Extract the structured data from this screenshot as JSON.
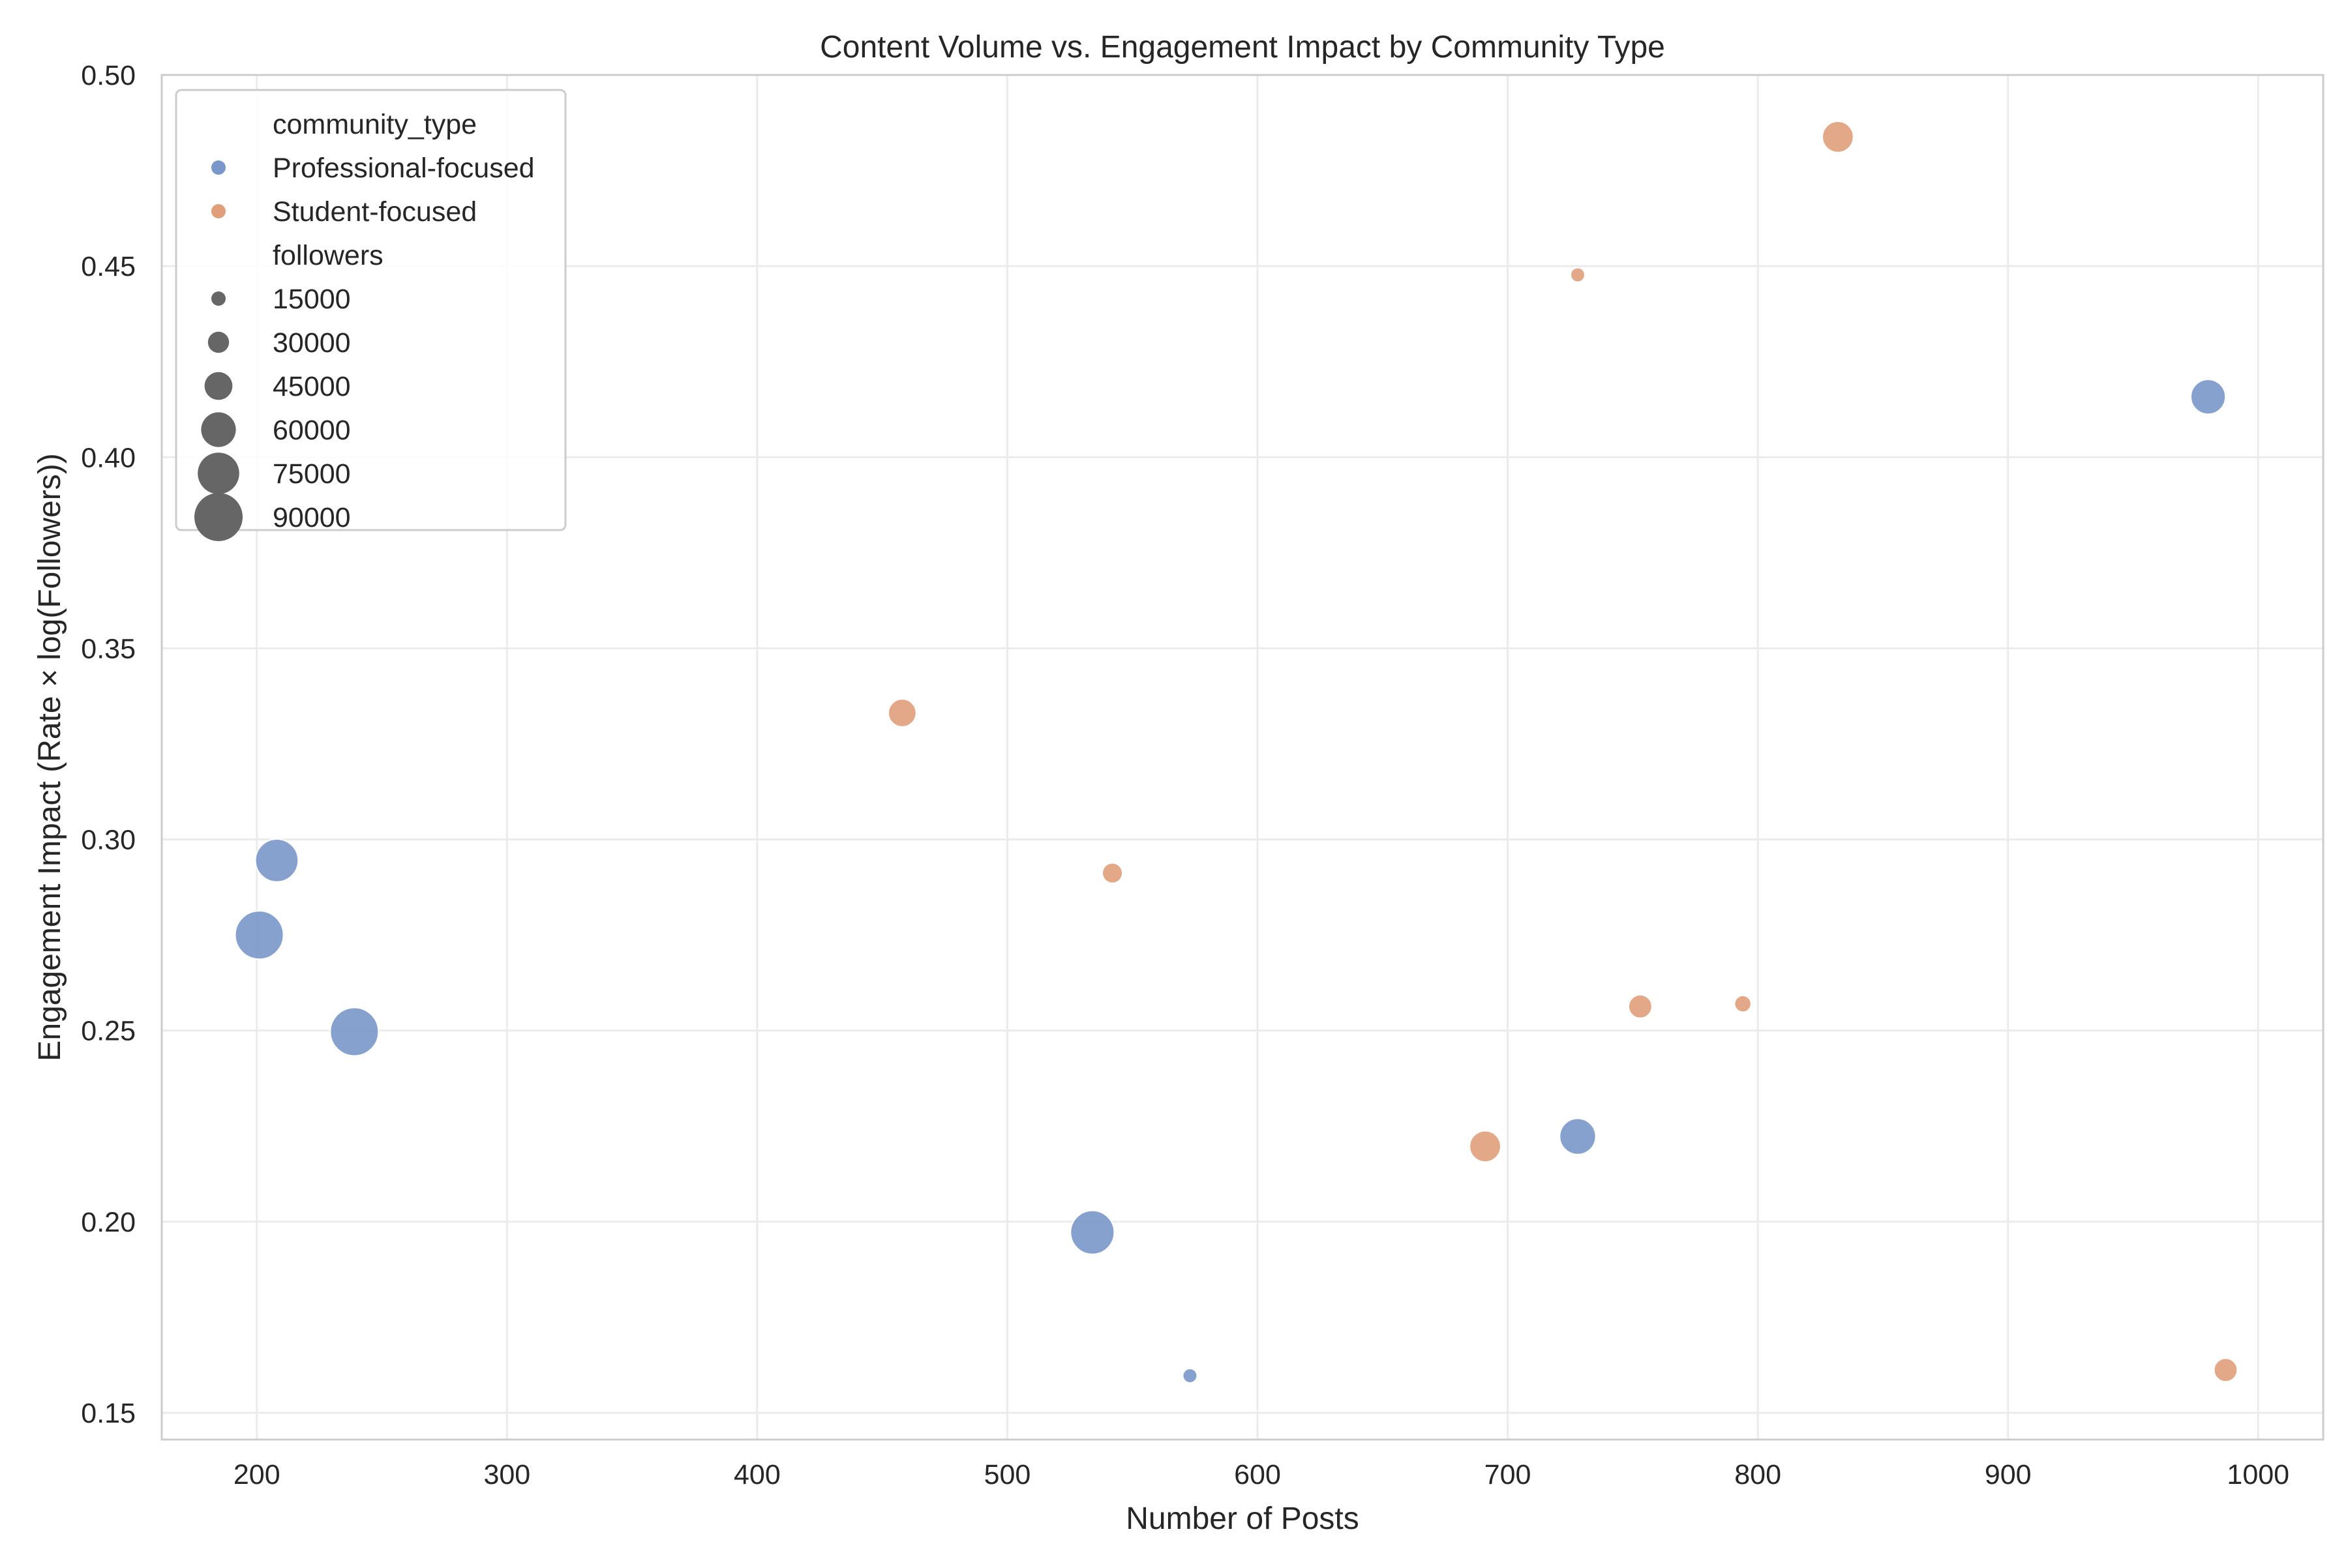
{
  "chart_data": {
    "type": "scatter",
    "title": "Content Volume vs. Engagement Impact by Community Type",
    "xlabel": "Number of Posts",
    "ylabel": "Engagement Impact (Rate × log(Followers))",
    "xlim": [
      162,
      1026
    ],
    "ylim": [
      0.143,
      0.5
    ],
    "xticks": [
      200,
      300,
      400,
      500,
      600,
      700,
      800,
      900,
      1000
    ],
    "yticks": [
      0.15,
      0.2,
      0.25,
      0.3,
      0.35,
      0.4,
      0.45,
      0.5
    ],
    "grid": true,
    "legend_position": "top-left",
    "legend": {
      "hue_title": "community_type",
      "size_title": "followers",
      "sizes": [
        15000,
        30000,
        45000,
        60000,
        75000,
        90000
      ]
    },
    "series": [
      {
        "name": "Professional-focused",
        "color": "#7a97c9",
        "points": [
          {
            "x": 201,
            "y": 0.275,
            "followers": 90000
          },
          {
            "x": 208,
            "y": 0.2945,
            "followers": 78000
          },
          {
            "x": 239,
            "y": 0.2497,
            "followers": 90000
          },
          {
            "x": 534,
            "y": 0.1972,
            "followers": 80000
          },
          {
            "x": 573,
            "y": 0.1597,
            "followers": 15000
          },
          {
            "x": 728,
            "y": 0.2223,
            "followers": 63000
          },
          {
            "x": 980,
            "y": 0.4158,
            "followers": 60000
          }
        ]
      },
      {
        "name": "Student-focused",
        "color": "#e09f7a",
        "points": [
          {
            "x": 458,
            "y": 0.3331,
            "followers": 45000
          },
          {
            "x": 542,
            "y": 0.2912,
            "followers": 28000
          },
          {
            "x": 691,
            "y": 0.2197,
            "followers": 52000
          },
          {
            "x": 728,
            "y": 0.4477,
            "followers": 15000
          },
          {
            "x": 753,
            "y": 0.2563,
            "followers": 35000
          },
          {
            "x": 794,
            "y": 0.257,
            "followers": 20000
          },
          {
            "x": 832,
            "y": 0.4838,
            "followers": 52000
          },
          {
            "x": 987,
            "y": 0.1612,
            "followers": 35000
          }
        ]
      }
    ]
  }
}
